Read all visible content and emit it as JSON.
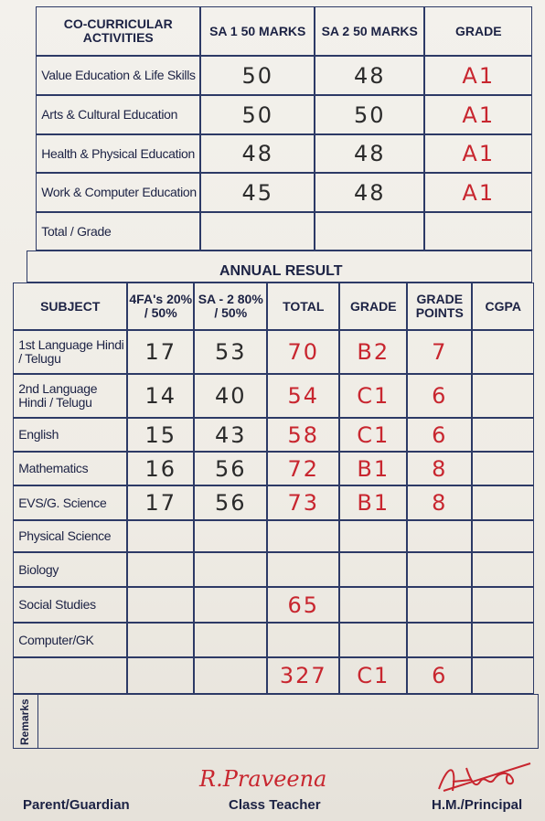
{
  "co_curricular": {
    "headers": [
      "CO-CURRICULAR ACTIVITIES",
      "SA 1 50 MARKS",
      "SA 2 50 MARKS",
      "GRADE"
    ],
    "rows": [
      {
        "activity": "Value Education & Life Skills",
        "sa1": 50,
        "sa2": 48,
        "grade": "A1"
      },
      {
        "activity": "Arts & Cultural Education",
        "sa1": 50,
        "sa2": 50,
        "grade": "A1"
      },
      {
        "activity": "Health & Physical Education",
        "sa1": 48,
        "sa2": 48,
        "grade": "A1"
      },
      {
        "activity": "Work & Computer Education",
        "sa1": 45,
        "sa2": 48,
        "grade": "A1"
      },
      {
        "activity": "Total / Grade"
      }
    ]
  },
  "annual_result": {
    "title": "ANNUAL RESULT",
    "headers": [
      "SUBJECT",
      "4FA's 20% / 50%",
      "SA - 2 80% / 50%",
      "TOTAL",
      "GRADE",
      "GRADE POINTS",
      "CGPA"
    ],
    "rows": [
      {
        "subject": "1st Language Hindi / Telugu",
        "fa": 17,
        "sa2": 53,
        "total": 70,
        "grade": "B2",
        "grade_points": 7
      },
      {
        "subject": "2nd Language Hindi / Telugu",
        "fa": 14,
        "sa2": 40,
        "total": 54,
        "grade": "C1",
        "grade_points": 6
      },
      {
        "subject": "English",
        "fa": 15,
        "sa2": 43,
        "total": 58,
        "grade": "C1",
        "grade_points": 6
      },
      {
        "subject": "Mathematics",
        "fa": 16,
        "sa2": 56,
        "total": 72,
        "grade": "B1",
        "grade_points": 8
      },
      {
        "subject": "EVS/G. Science",
        "fa": 17,
        "sa2": 56,
        "total": 73,
        "grade": "B1",
        "grade_points": 8
      },
      {
        "subject": "Physical Science"
      },
      {
        "subject": "Biology"
      },
      {
        "subject": "Social Studies",
        "total": 65
      },
      {
        "subject": "Computer/GK"
      },
      {
        "total": 327,
        "grade": "C1",
        "grade_points": 6
      }
    ]
  },
  "remarks": "Remarks",
  "signatures": {
    "parent": "Parent/Guardian",
    "class_teacher": "Class Teacher",
    "class_teacher_name": "R.Praveena",
    "principal": "H.M./Principal"
  }
}
